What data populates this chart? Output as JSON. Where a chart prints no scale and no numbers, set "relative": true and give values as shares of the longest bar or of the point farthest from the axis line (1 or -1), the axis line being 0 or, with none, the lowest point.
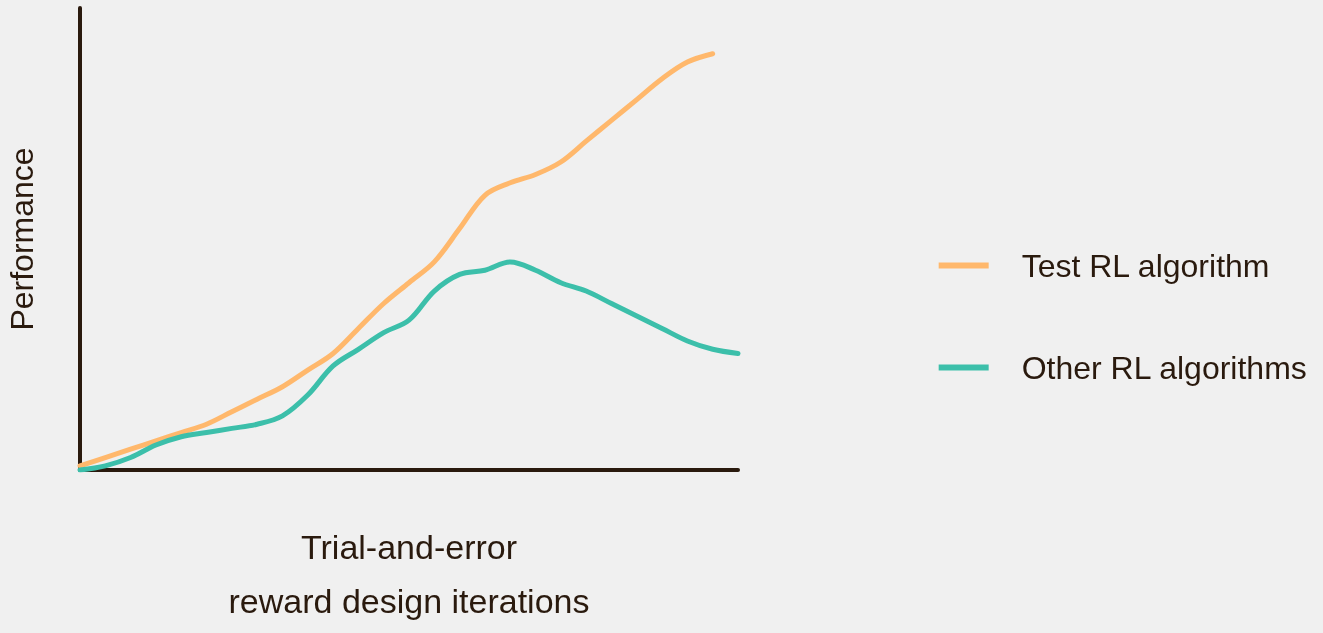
{
  "chart_data": {
    "type": "line",
    "relative": true,
    "xlabel": "Trial-and-error\nreward design iterations",
    "ylabel": "Performance",
    "categories": [
      null,
      null,
      null,
      null,
      null,
      null,
      null,
      null,
      null,
      null,
      null,
      null,
      null,
      null,
      null,
      null,
      null,
      null,
      null,
      null,
      null,
      null,
      null,
      null,
      null,
      null,
      null
    ],
    "series": [
      {
        "name": "Test RL algorithm",
        "color": "#ffb86c",
        "values": [
          0.01,
          0.03,
          0.05,
          0.07,
          0.09,
          0.11,
          0.14,
          0.17,
          0.2,
          0.24,
          0.28,
          0.34,
          0.4,
          0.45,
          0.5,
          0.58,
          0.66,
          0.69,
          0.71,
          0.74,
          0.79,
          0.84,
          0.89,
          0.94,
          0.98,
          1.0,
          null
        ]
      },
      {
        "name": "Other RL algorithms",
        "color": "#3cbfaa",
        "values": [
          0.0,
          0.01,
          0.03,
          0.06,
          0.08,
          0.09,
          0.1,
          0.11,
          0.13,
          0.18,
          0.25,
          0.29,
          0.33,
          0.36,
          0.43,
          0.47,
          0.48,
          0.5,
          0.48,
          0.45,
          0.43,
          0.4,
          0.37,
          0.34,
          0.31,
          0.29,
          0.28
        ]
      }
    ],
    "legend": "right",
    "grid": false,
    "marker": "none",
    "line_style": "solid"
  }
}
